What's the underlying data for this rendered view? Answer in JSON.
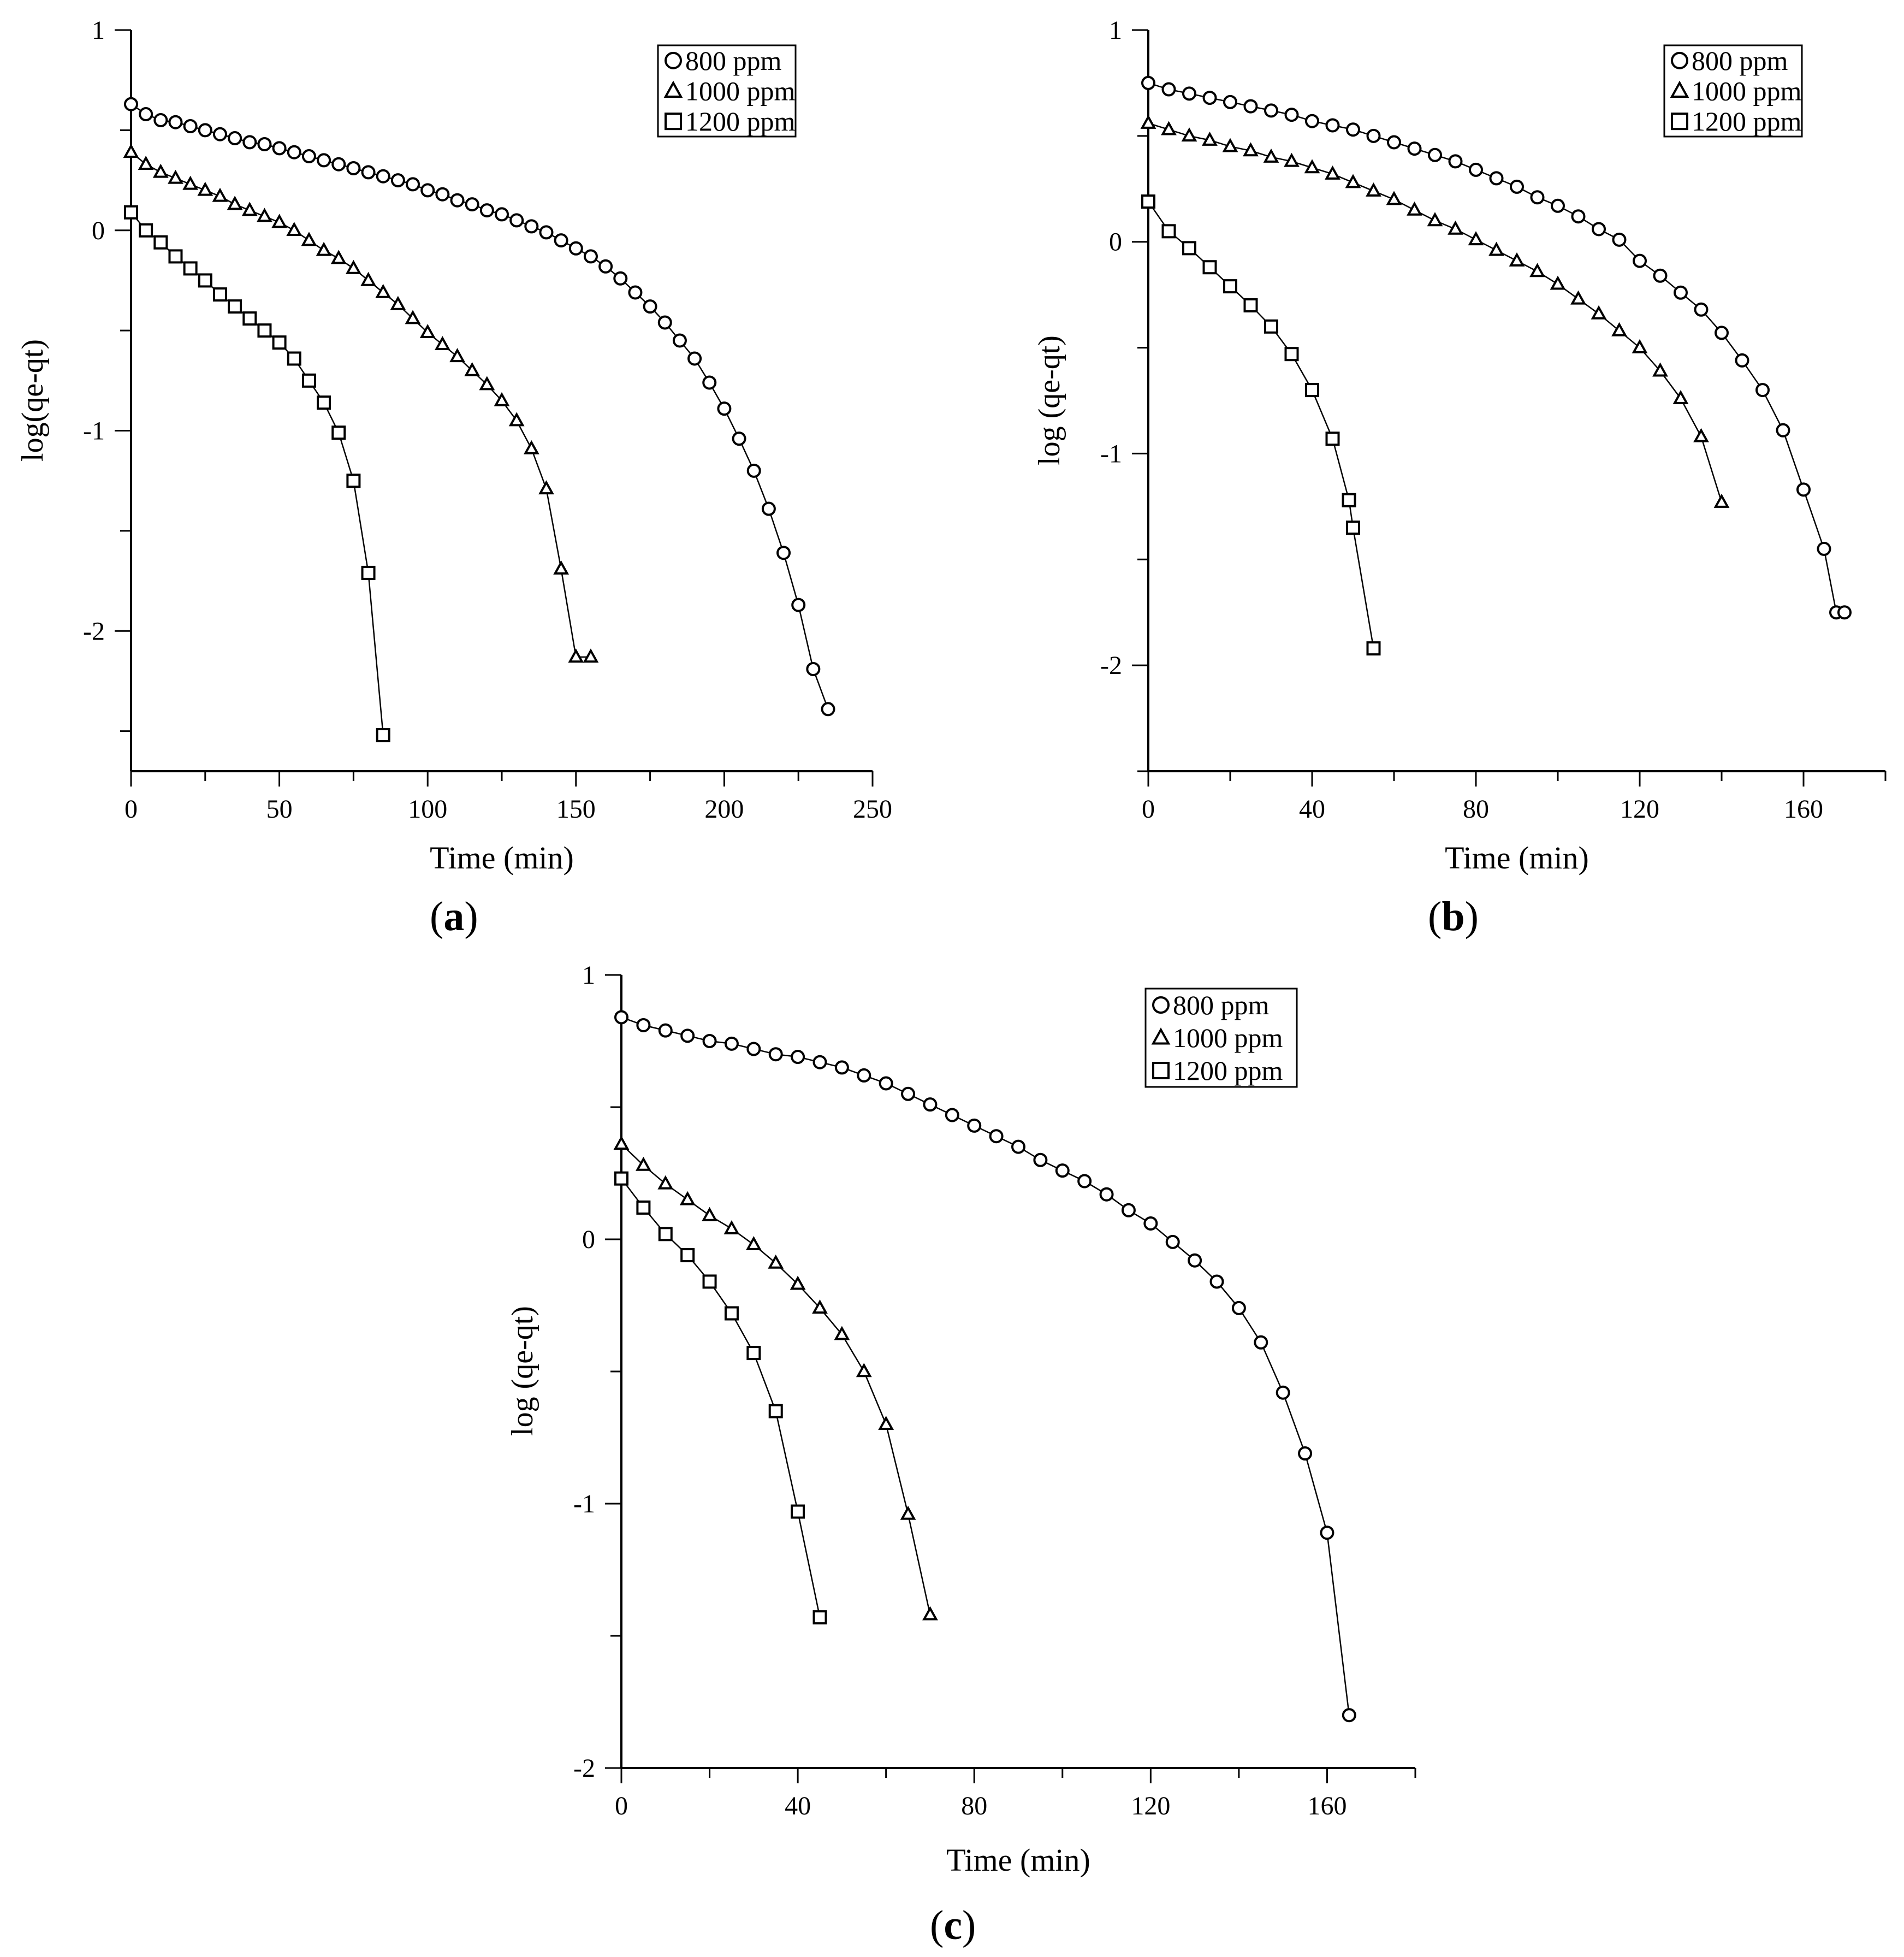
{
  "chart_data": [
    {
      "panel": "(a)",
      "type": "line",
      "xlabel": "Time (min)",
      "ylabel": "log(qe-qt)",
      "xlim": [
        0,
        250
      ],
      "ylim": [
        -2.7,
        1
      ],
      "xticks": [
        0,
        50,
        100,
        150,
        200,
        250
      ],
      "yticks": [
        1,
        0,
        -1,
        -2
      ],
      "legend": [
        "800 ppm",
        "1000 ppm",
        "1200 ppm"
      ],
      "legend_placement": "top-right",
      "grid": false,
      "series": [
        {
          "name": "800 ppm",
          "marker": "circle",
          "x": [
            0,
            5,
            10,
            15,
            20,
            25,
            30,
            35,
            40,
            45,
            50,
            55,
            60,
            65,
            70,
            75,
            80,
            85,
            90,
            95,
            100,
            105,
            110,
            115,
            120,
            125,
            130,
            135,
            140,
            145,
            150,
            155,
            160,
            165,
            170,
            175,
            180,
            185,
            190,
            195,
            200,
            205,
            210,
            215,
            220,
            225,
            230,
            235
          ],
          "y": [
            0.63,
            0.58,
            0.55,
            0.54,
            0.52,
            0.5,
            0.48,
            0.46,
            0.44,
            0.43,
            0.41,
            0.39,
            0.37,
            0.35,
            0.33,
            0.31,
            0.29,
            0.27,
            0.25,
            0.23,
            0.2,
            0.18,
            0.15,
            0.13,
            0.1,
            0.08,
            0.05,
            0.02,
            -0.01,
            -0.05,
            -0.09,
            -0.13,
            -0.18,
            -0.24,
            -0.31,
            -0.38,
            -0.46,
            -0.55,
            -0.64,
            -0.76,
            -0.89,
            -1.04,
            -1.2,
            -1.39,
            -1.61,
            -1.87,
            -2.19,
            -2.39
          ]
        },
        {
          "name": "1000 ppm",
          "marker": "triangle",
          "x": [
            0,
            5,
            10,
            15,
            20,
            25,
            30,
            35,
            40,
            45,
            50,
            55,
            60,
            65,
            70,
            75,
            80,
            85,
            90,
            95,
            100,
            105,
            110,
            115,
            120,
            125,
            130,
            135,
            140,
            145,
            150,
            155
          ],
          "y": [
            0.39,
            0.33,
            0.29,
            0.26,
            0.23,
            0.2,
            0.17,
            0.13,
            0.1,
            0.07,
            0.04,
            0.0,
            -0.05,
            -0.1,
            -0.14,
            -0.19,
            -0.25,
            -0.31,
            -0.37,
            -0.44,
            -0.51,
            -0.57,
            -0.63,
            -0.7,
            -0.77,
            -0.85,
            -0.95,
            -1.09,
            -1.29,
            -1.69,
            -2.13,
            -2.13
          ]
        },
        {
          "name": "1200 ppm",
          "marker": "square",
          "x": [
            0,
            5,
            10,
            15,
            20,
            25,
            30,
            35,
            40,
            45,
            50,
            55,
            60,
            65,
            70,
            75,
            80,
            85
          ],
          "y": [
            0.09,
            0.0,
            -0.06,
            -0.13,
            -0.19,
            -0.25,
            -0.32,
            -0.38,
            -0.44,
            -0.5,
            -0.56,
            -0.64,
            -0.75,
            -0.86,
            -1.01,
            -1.25,
            -1.71,
            -2.52
          ]
        }
      ]
    },
    {
      "panel": "(b)",
      "type": "line",
      "xlabel": "Time (min)",
      "ylabel": "log (qe-qt)",
      "xlim": [
        0,
        180
      ],
      "ylim": [
        -2.5,
        1
      ],
      "xticks": [
        0,
        40,
        80,
        120,
        160
      ],
      "yticks": [
        1,
        0,
        -1,
        -2
      ],
      "legend": [
        "800 ppm",
        "1000 ppm",
        "1200 ppm"
      ],
      "legend_placement": "top-right",
      "grid": false,
      "series": [
        {
          "name": "800 ppm",
          "marker": "circle",
          "x": [
            0,
            5,
            10,
            15,
            20,
            25,
            30,
            35,
            40,
            45,
            50,
            55,
            60,
            65,
            70,
            75,
            80,
            85,
            90,
            95,
            100,
            105,
            110,
            115,
            120,
            125,
            130,
            135,
            140,
            145,
            150,
            155,
            160,
            165,
            168,
            170
          ],
          "y": [
            0.75,
            0.72,
            0.7,
            0.68,
            0.66,
            0.64,
            0.62,
            0.6,
            0.57,
            0.55,
            0.53,
            0.5,
            0.47,
            0.44,
            0.41,
            0.38,
            0.34,
            0.3,
            0.26,
            0.21,
            0.17,
            0.12,
            0.06,
            0.01,
            -0.09,
            -0.16,
            -0.24,
            -0.32,
            -0.43,
            -0.56,
            -0.7,
            -0.89,
            -1.17,
            -1.45,
            -1.75,
            -1.75
          ]
        },
        {
          "name": "1000 ppm",
          "marker": "triangle",
          "x": [
            0,
            5,
            10,
            15,
            20,
            25,
            30,
            35,
            40,
            45,
            50,
            55,
            60,
            65,
            70,
            75,
            80,
            85,
            90,
            95,
            100,
            105,
            110,
            115,
            120,
            125,
            130,
            135,
            140
          ],
          "y": [
            0.56,
            0.53,
            0.5,
            0.48,
            0.45,
            0.43,
            0.4,
            0.38,
            0.35,
            0.32,
            0.28,
            0.24,
            0.2,
            0.15,
            0.1,
            0.06,
            0.01,
            -0.04,
            -0.09,
            -0.14,
            -0.2,
            -0.27,
            -0.34,
            -0.42,
            -0.5,
            -0.61,
            -0.74,
            -0.92,
            -1.23
          ]
        },
        {
          "name": "1200 ppm",
          "marker": "square",
          "x": [
            0,
            5,
            10,
            15,
            20,
            25,
            30,
            35,
            40,
            45,
            49,
            50,
            55
          ],
          "y": [
            0.19,
            0.05,
            -0.03,
            -0.12,
            -0.21,
            -0.3,
            -0.4,
            -0.53,
            -0.7,
            -0.93,
            -1.22,
            -1.35,
            -1.92
          ]
        }
      ]
    },
    {
      "panel": "(c)",
      "type": "line",
      "xlabel": "Time (min)",
      "ylabel": "log (qe-qt)",
      "xlim": [
        0,
        180
      ],
      "ylim": [
        -2,
        1
      ],
      "xticks": [
        0,
        40,
        80,
        120,
        160
      ],
      "yticks": [
        1,
        0,
        -1,
        -2
      ],
      "legend": [
        "800 ppm",
        "1000 ppm",
        "1200 ppm"
      ],
      "legend_placement": "top-right",
      "grid": false,
      "series": [
        {
          "name": "800 ppm",
          "marker": "circle",
          "x": [
            0,
            5,
            10,
            15,
            20,
            25,
            30,
            35,
            40,
            45,
            50,
            55,
            60,
            65,
            70,
            75,
            80,
            85,
            90,
            95,
            100,
            105,
            110,
            115,
            120,
            125,
            130,
            135,
            140,
            145,
            150,
            155,
            160,
            165
          ],
          "y": [
            0.84,
            0.81,
            0.79,
            0.77,
            0.75,
            0.74,
            0.72,
            0.7,
            0.69,
            0.67,
            0.65,
            0.62,
            0.59,
            0.55,
            0.51,
            0.47,
            0.43,
            0.39,
            0.35,
            0.3,
            0.26,
            0.22,
            0.17,
            0.11,
            0.06,
            -0.01,
            -0.08,
            -0.16,
            -0.26,
            -0.39,
            -0.58,
            -0.81,
            -1.11,
            -1.8
          ]
        },
        {
          "name": "1000 ppm",
          "marker": "triangle",
          "x": [
            0,
            5,
            10,
            15,
            20,
            25,
            30,
            35,
            40,
            45,
            50,
            55,
            60,
            65,
            70
          ],
          "y": [
            0.36,
            0.28,
            0.21,
            0.15,
            0.09,
            0.04,
            -0.02,
            -0.09,
            -0.17,
            -0.26,
            -0.36,
            -0.5,
            -0.7,
            -1.04,
            -1.42
          ]
        },
        {
          "name": "1200 ppm",
          "marker": "square",
          "x": [
            0,
            5,
            10,
            15,
            20,
            25,
            30,
            35,
            40,
            45
          ],
          "y": [
            0.23,
            0.12,
            0.02,
            -0.06,
            -0.16,
            -0.28,
            -0.43,
            -0.65,
            -1.03,
            -1.43
          ]
        }
      ]
    }
  ]
}
